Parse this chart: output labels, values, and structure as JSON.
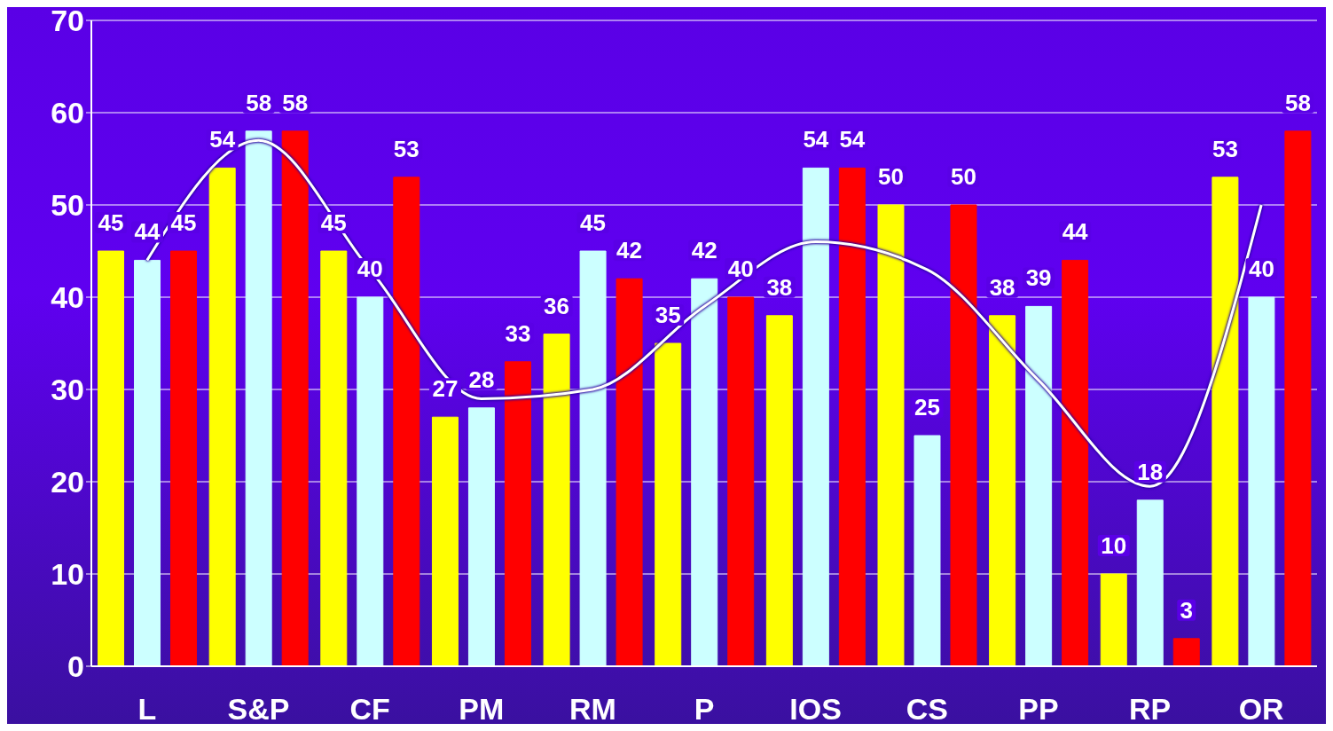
{
  "chart_data": {
    "type": "bar",
    "categories": [
      "L",
      "S&P",
      "CF",
      "PM",
      "RM",
      "P",
      "IOS",
      "CS",
      "PP",
      "RP",
      "OR"
    ],
    "series": [
      {
        "color": "#ffff00",
        "values": [
          45,
          54,
          45,
          27,
          36,
          35,
          38,
          50,
          38,
          10,
          53
        ],
        "value_labels": [
          "45",
          "54",
          "45",
          "27",
          "36",
          "35",
          "38",
          "50",
          "38",
          "10",
          "53"
        ]
      },
      {
        "color": "#ccffff",
        "values": [
          44,
          58,
          40,
          28,
          45,
          42,
          54,
          25,
          39,
          18,
          40
        ],
        "value_labels": [
          "44",
          "58",
          "40",
          "28",
          "45",
          "42",
          "54",
          "25",
          "39",
          "18",
          "40"
        ]
      },
      {
        "color": "#ff0000",
        "values": [
          45,
          58,
          53,
          33,
          42,
          40,
          54,
          50,
          44,
          3,
          58
        ],
        "value_labels": [
          "45",
          "58",
          "53",
          "33",
          "42",
          "40",
          "54",
          "50",
          "44",
          "3",
          "58"
        ]
      },
      {
        "type": "line",
        "color": "#ffffff",
        "marker": "none",
        "x": [
          "L",
          "S&P",
          "CF",
          "PM",
          "RM",
          "P",
          "IOS",
          "CS",
          "PP",
          "RP",
          "OR"
        ],
        "values": [
          44,
          57,
          43,
          29,
          30,
          39,
          46,
          43,
          31,
          19.5,
          50
        ]
      }
    ],
    "ylim": [
      0,
      70
    ],
    "yticks": [
      0,
      10,
      20,
      30,
      40,
      50,
      60,
      70
    ],
    "grid": "y"
  }
}
